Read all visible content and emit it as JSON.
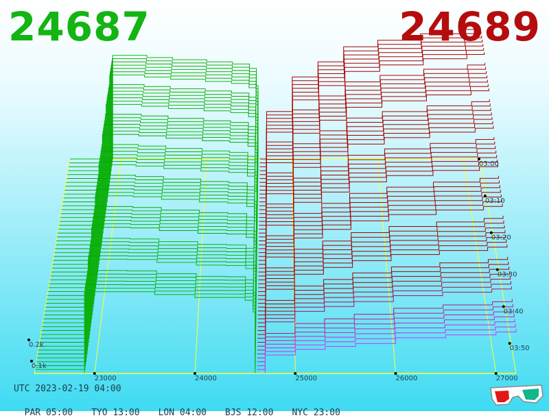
{
  "header": {
    "bid_price": "24687",
    "ask_price": "24689"
  },
  "footer": {
    "utc": "UTC 2023-02-19 04:00",
    "clocks": [
      "PAR 05:00",
      "TYO 13:00",
      "LON 04:00",
      "BJS 12:00",
      "NYC 23:00"
    ]
  },
  "colors": {
    "background_top": "#ffffff",
    "background_bottom": "#3fdbf2",
    "bid": "#0dbb0d",
    "ask": "#a60000",
    "ask_latest": "#cc33ff",
    "grid": "#ffff33",
    "bid_price_text": "#13b413",
    "ask_price_text": "#b40d0d"
  },
  "icons": {
    "glasses": "3d-glasses-icon"
  },
  "chart_data": {
    "type": "area",
    "x": [
      22900,
      23000,
      23300,
      23600,
      24000,
      24300,
      24500,
      24580,
      24600,
      24620,
      24700,
      25000,
      25300,
      25600,
      26000,
      26500,
      27000,
      27200
    ],
    "xlim": [
      22400,
      27200
    ],
    "x_ticks": [
      "23000",
      "24000",
      "25000",
      "26000",
      "27000"
    ],
    "y_ticks": [
      "0.1k",
      "0.2k"
    ],
    "time_ticks": [
      "03:00",
      "03:10",
      "03:20",
      "03:30",
      "03:40",
      "03:50"
    ],
    "series": [
      {
        "side": "bid",
        "values_oldest": [
          0.48,
          0.48,
          0.47,
          0.46,
          0.45,
          0.44,
          0.42,
          0.34,
          0.0
        ],
        "values_latest": [
          0.26,
          0.26,
          0.26,
          0.25,
          0.24,
          0.24,
          0.23,
          0.19,
          0.0
        ]
      },
      {
        "side": "ask",
        "values_oldest": [
          0.0,
          0.22,
          0.38,
          0.45,
          0.52,
          0.55,
          0.58,
          0.6,
          0.61
        ],
        "values_latest": [
          0.0,
          0.04,
          0.06,
          0.07,
          0.08,
          0.1,
          0.11,
          0.12,
          0.13
        ]
      }
    ]
  }
}
